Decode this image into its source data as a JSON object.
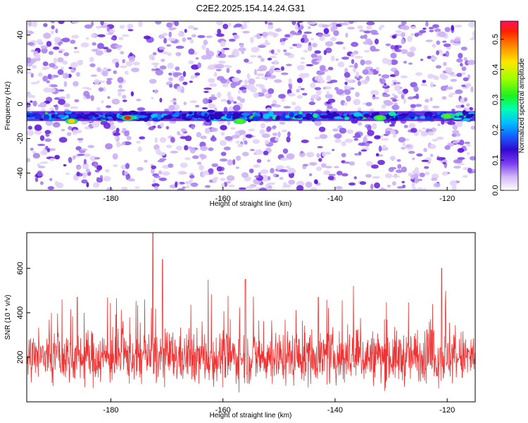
{
  "title": "C2E2.2025.154.14.24.G31",
  "chart_data": [
    {
      "type": "heatmap",
      "xlabel": "Height of straight line (km)",
      "ylabel": "Frequency (Hz)",
      "xlim": [
        -195,
        -115
      ],
      "ylim": [
        -50,
        48
      ],
      "xticks": [
        -180,
        -160,
        -140,
        -120
      ],
      "yticks": [
        -40,
        -20,
        0,
        20,
        40
      ],
      "colorbar": {
        "label": "Normalized spectral amplitude",
        "range": [
          0,
          0.56
        ],
        "ticks": [
          0,
          0.1,
          0.2,
          0.3,
          0.4,
          0.5
        ],
        "tick_labels": [
          "0.0",
          "0.1",
          "0.2",
          "0.3",
          "0.4",
          "0.5"
        ]
      },
      "band_center_hz": -7,
      "peaks": [
        {
          "x": -177,
          "y": -8,
          "value": 0.56
        },
        {
          "x": -187,
          "y": -10,
          "value": 0.45
        },
        {
          "x": -157,
          "y": -10,
          "value": 0.3
        },
        {
          "x": -132,
          "y": -8,
          "value": 0.3
        },
        {
          "x": -120,
          "y": -7,
          "value": 0.3
        }
      ]
    },
    {
      "type": "line",
      "xlabel": "Height of straight line (km)",
      "ylabel": "SNR (10 * v/v)",
      "xlim": [
        -195,
        -115
      ],
      "ylim": [
        0,
        760
      ],
      "xticks": [
        -180,
        -160,
        -140,
        -120
      ],
      "yticks": [
        200,
        400,
        600
      ],
      "color": "#f03232",
      "baseline_mean": 200,
      "spikes": [
        {
          "x": -172.5,
          "y": 760
        },
        {
          "x": -170.8,
          "y": 640
        },
        {
          "x": -156,
          "y": 550
        },
        {
          "x": -121,
          "y": 600
        },
        {
          "x": -143,
          "y": 470
        },
        {
          "x": -186,
          "y": 470
        }
      ]
    }
  ]
}
